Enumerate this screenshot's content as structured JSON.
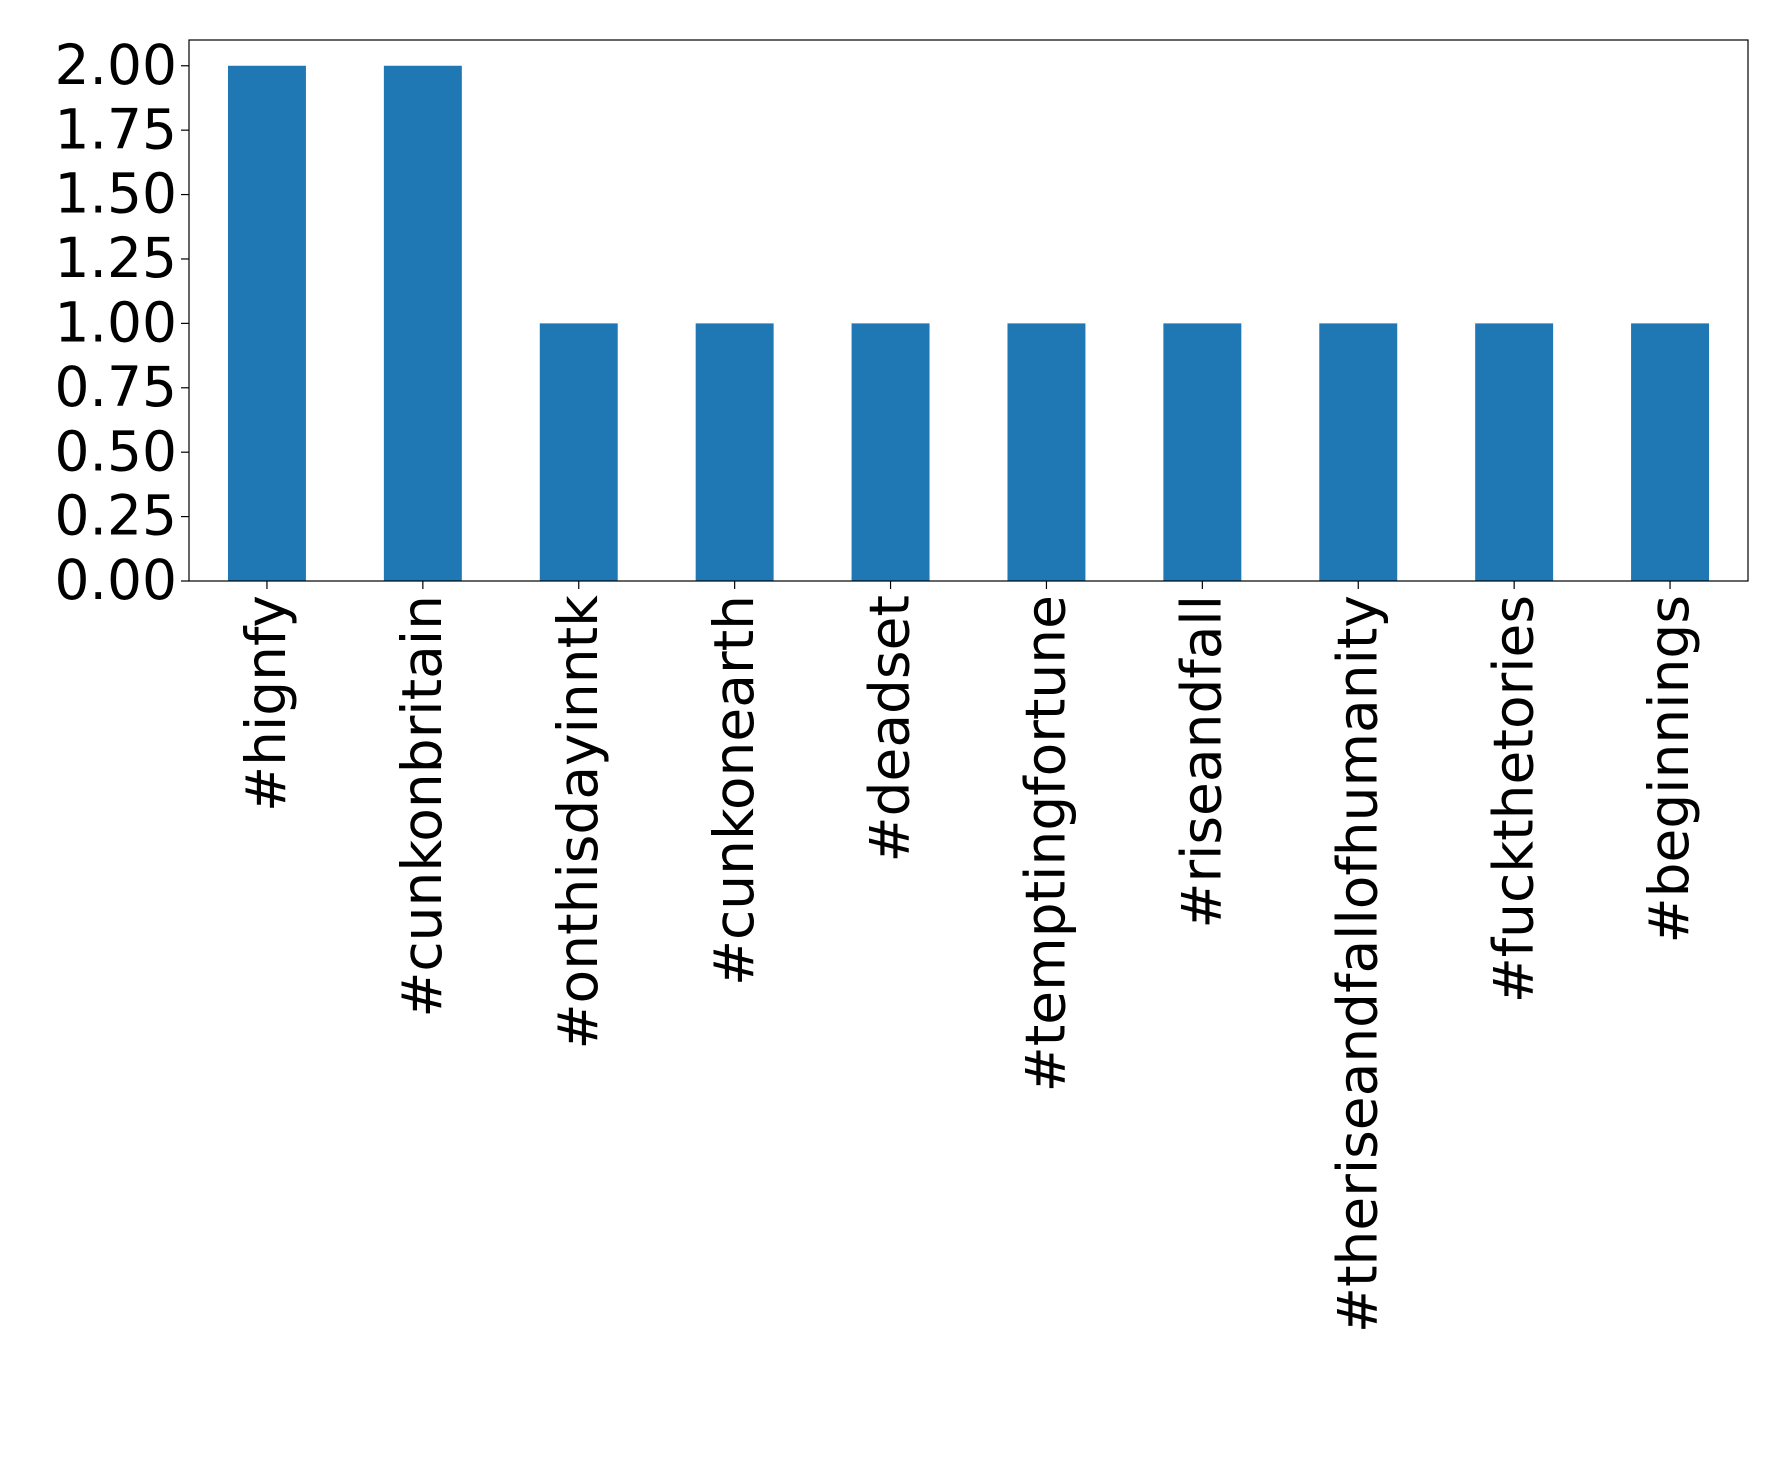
{
  "chart_data": {
    "type": "bar",
    "categories": [
      "#hignfy",
      "#cunkonbritain",
      "#onthisdayinntk",
      "#cunkonearth",
      "#deadset",
      "#temptingfortune",
      "#riseandfall",
      "#theriseandfallofhumanity",
      "#fuckthetories",
      "#beginnings"
    ],
    "values": [
      2,
      2,
      1,
      1,
      1,
      1,
      1,
      1,
      1,
      1
    ],
    "color": "#1f77b4",
    "ylim": [
      0,
      2.1
    ],
    "yticks": [
      {
        "value": 0,
        "label": "0.00"
      },
      {
        "value": 0.25,
        "label": "0.25"
      },
      {
        "value": 0.5,
        "label": "0.50"
      },
      {
        "value": 0.75,
        "label": "0.75"
      },
      {
        "value": 1,
        "label": "1.00"
      },
      {
        "value": 1.25,
        "label": "1.25"
      },
      {
        "value": 1.5,
        "label": "1.50"
      },
      {
        "value": 1.75,
        "label": "1.75"
      },
      {
        "value": 2,
        "label": "2.00"
      }
    ],
    "grid": false
  }
}
